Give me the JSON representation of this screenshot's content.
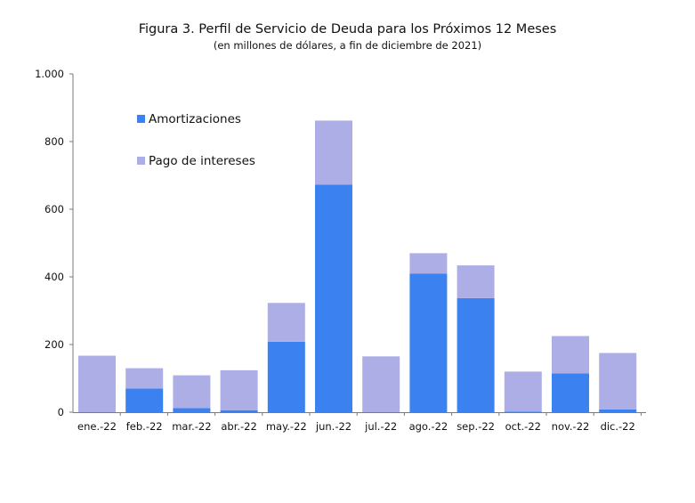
{
  "chart_data": {
    "type": "bar",
    "stacked": true,
    "title": "Figura 3. Perfil de Servicio de Deuda para los Próximos 12 Meses",
    "subtitle": "(en millones de dólares, a fin de diciembre de 2021)",
    "xlabel": "",
    "ylabel": "",
    "categories": [
      "ene.-22",
      "feb.-22",
      "mar.-22",
      "abr.-22",
      "may.-22",
      "jun.-22",
      "jul.-22",
      "ago.-22",
      "sep.-22",
      "oct.-22",
      "nov.-22",
      "dic.-22"
    ],
    "series": [
      {
        "name": "Amortizaciones",
        "color": "#3b82f0",
        "values": [
          0,
          70,
          12,
          6,
          208,
          673,
          0,
          410,
          337,
          2,
          115,
          8
        ]
      },
      {
        "name": "Pago de intereses",
        "color": "#adaee6",
        "values": [
          167,
          60,
          97,
          118,
          115,
          189,
          165,
          60,
          97,
          118,
          110,
          167
        ]
      }
    ],
    "ylim": [
      0,
      1000
    ],
    "yticks": [
      0,
      200,
      400,
      600,
      800,
      1000
    ],
    "ytick_labels": [
      "0",
      "200",
      "400",
      "600",
      "800",
      "1.000"
    ],
    "grid": false,
    "legend_position": "top-left"
  }
}
